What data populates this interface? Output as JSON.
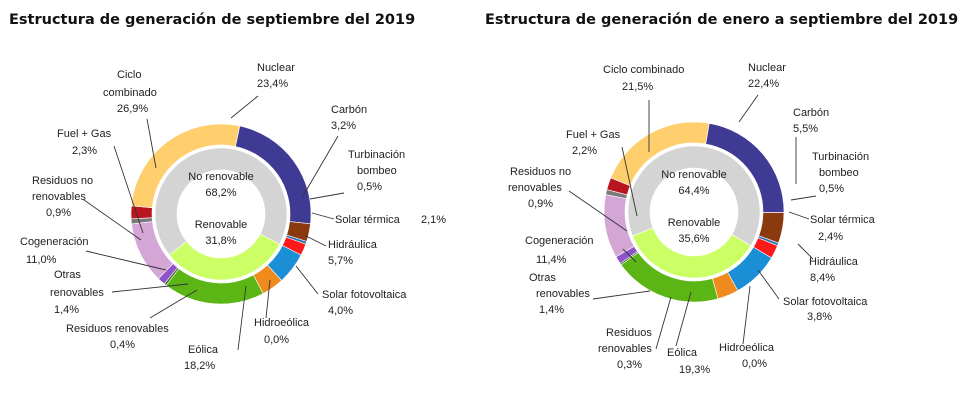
{
  "chart_data": [
    {
      "type": "pie",
      "title": "Estructura de generación de septiembre del 2019",
      "inner": [
        {
          "name": "No renovable",
          "value": "68,2%",
          "share": 68.2,
          "color": "#d4d4d4"
        },
        {
          "name": "Renovable",
          "value": "31,8%",
          "share": 31.8,
          "color": "#ccff66"
        }
      ],
      "outer": [
        {
          "name": "Nuclear",
          "value": "23,4%",
          "share": 23.4,
          "color": "#3f3a94"
        },
        {
          "name": "Carbón",
          "value": "3,2%",
          "share": 3.2,
          "color": "#8b3a0f"
        },
        {
          "name": "Turbinación bombeo",
          "value": "0,5%",
          "share": 0.5,
          "color": "#2f6eb5"
        },
        {
          "name": "Solar térmica",
          "value": "2,1%",
          "share": 2.1,
          "color": "#ff1a1a"
        },
        {
          "name": "Hidráulica",
          "value": "5,7%",
          "share": 5.7,
          "color": "#1b8fd6"
        },
        {
          "name": "Solar fotovoltaica",
          "value": "4,0%",
          "share": 4.0,
          "color": "#f08a1c"
        },
        {
          "name": "Hidroeólica",
          "value": "0,0%",
          "share": 0.0,
          "color": "#ffffff"
        },
        {
          "name": "Eólica",
          "value": "18,2%",
          "share": 18.2,
          "color": "#5bb514"
        },
        {
          "name": "Residuos renovables",
          "value": "0,4%",
          "share": 0.4,
          "color": "#2e6b22"
        },
        {
          "name": "Otras renovables",
          "value": "1,4%",
          "share": 1.4,
          "color": "#8e52c9"
        },
        {
          "name": "Cogeneración",
          "value": "11,0%",
          "share": 11.0,
          "color": "#d4a6d6"
        },
        {
          "name": "Residuos no renovables",
          "value": "0,9%",
          "share": 0.9,
          "color": "#7a7a7a"
        },
        {
          "name": "Fuel + Gas",
          "value": "2,3%",
          "share": 2.3,
          "color": "#b8151f"
        },
        {
          "name": "Ciclo combinado",
          "value": "26,9%",
          "share": 26.9,
          "color": "#ffcf6e"
        }
      ]
    },
    {
      "type": "pie",
      "title": "Estructura de generación de enero a septiembre del 2019",
      "inner": [
        {
          "name": "No renovable",
          "value": "64,4%",
          "share": 64.4,
          "color": "#d4d4d4"
        },
        {
          "name": "Renovable",
          "value": "35,6%",
          "share": 35.6,
          "color": "#ccff66"
        }
      ],
      "outer": [
        {
          "name": "Nuclear",
          "value": "22,4%",
          "share": 22.4,
          "color": "#3f3a94"
        },
        {
          "name": "Carbón",
          "value": "5,5%",
          "share": 5.5,
          "color": "#8b3a0f"
        },
        {
          "name": "Turbinación bombeo",
          "value": "0,5%",
          "share": 0.5,
          "color": "#2f6eb5"
        },
        {
          "name": "Solar térmica",
          "value": "2,4%",
          "share": 2.4,
          "color": "#ff1a1a"
        },
        {
          "name": "Hidráulica",
          "value": "8,4%",
          "share": 8.4,
          "color": "#1b8fd6"
        },
        {
          "name": "Solar fotovoltaica",
          "value": "3,8%",
          "share": 3.8,
          "color": "#f08a1c"
        },
        {
          "name": "Hidroeólica",
          "value": "0,0%",
          "share": 0.0,
          "color": "#ffffff"
        },
        {
          "name": "Eólica",
          "value": "19,3%",
          "share": 19.3,
          "color": "#5bb514"
        },
        {
          "name": "Residuos renovables",
          "value": "0,3%",
          "share": 0.3,
          "color": "#2e6b22"
        },
        {
          "name": "Otras renovables",
          "value": "1,4%",
          "share": 1.4,
          "color": "#8e52c9"
        },
        {
          "name": "Cogeneración",
          "value": "11,4%",
          "share": 11.4,
          "color": "#d4a6d6"
        },
        {
          "name": "Residuos no renovables",
          "value": "0,9%",
          "share": 0.9,
          "color": "#7a7a7a"
        },
        {
          "name": "Fuel + Gas",
          "value": "2,2%",
          "share": 2.2,
          "color": "#b8151f"
        },
        {
          "name": "Ciclo combinado",
          "value": "21,5%",
          "share": 21.5,
          "color": "#ffcf6e"
        }
      ]
    }
  ]
}
